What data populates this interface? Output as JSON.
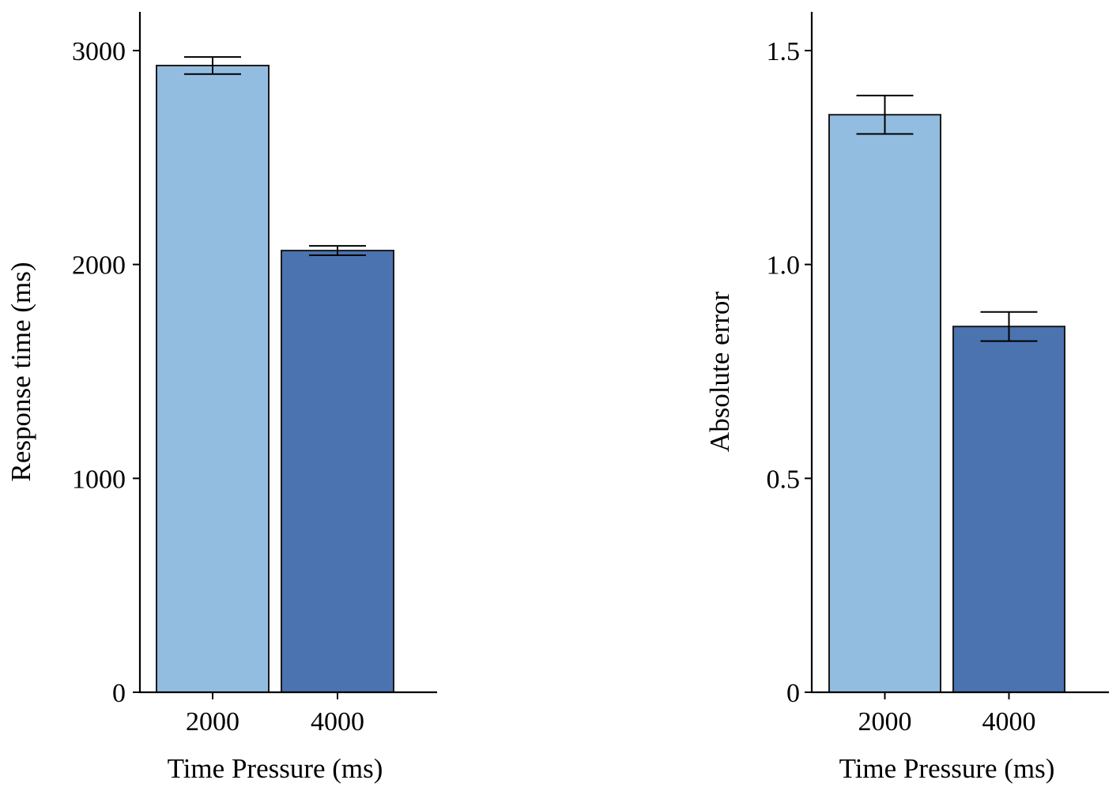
{
  "colors": {
    "light_blue": "#93bde0",
    "dark_blue": "#4a73b0",
    "axis": "#000000",
    "background": "#ffffff"
  },
  "chart_data": [
    {
      "type": "bar",
      "categories": [
        "2000",
        "4000"
      ],
      "values": [
        2930,
        2065
      ],
      "error": [
        40,
        22
      ],
      "bar_colors": [
        "#93bde0",
        "#4a73b0"
      ],
      "xlabel": "Time Pressure (ms)",
      "ylabel": "Response time (ms)",
      "ylim": [
        0,
        3200
      ],
      "yticks": [
        0,
        1000,
        2000,
        3000
      ],
      "ytick_labels": [
        "0",
        "1000",
        "2000",
        "3000"
      ],
      "grid": false
    },
    {
      "type": "bar",
      "categories": [
        "2000",
        "4000"
      ],
      "values": [
        1.35,
        0.855
      ],
      "error": [
        0.045,
        0.034
      ],
      "bar_colors": [
        "#93bde0",
        "#4a73b0"
      ],
      "xlabel": "Time Pressure (ms)",
      "ylabel": "Absolute error",
      "ylim": [
        0,
        1.6
      ],
      "yticks": [
        0,
        0.5,
        1.0,
        1.5
      ],
      "ytick_labels": [
        "0",
        "0.5",
        "1.0",
        "1.5"
      ],
      "grid": false
    }
  ]
}
